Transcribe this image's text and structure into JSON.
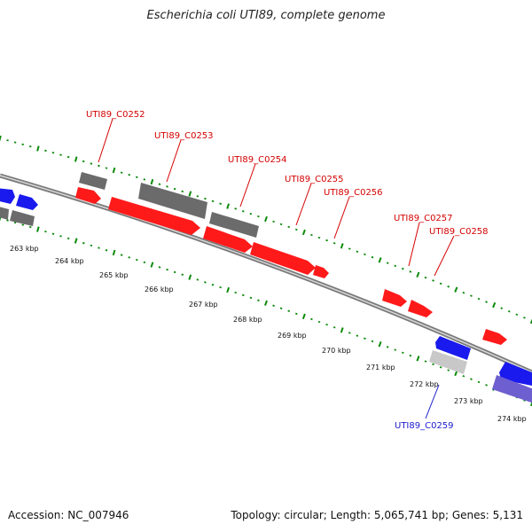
{
  "title": "Escherichia coli UTI89, complete genome",
  "footer": {
    "accession": "Accession: NC_007946",
    "stats": "Topology: circular; Length: 5,065,741 bp; Genes: 5,131"
  },
  "colors": {
    "gene_red": "#ff1a1a",
    "gene_gray": "#666666",
    "gene_blue": "#1a1aee",
    "gene_lightgray": "#c8c8c8",
    "gene_purple": "#6e5fd0",
    "backbone": "#7a7a7a",
    "tick_green": "#0a8a0a",
    "label_red": "#d40000",
    "label_blue": "#1a1acc"
  },
  "kbp_labels": [
    "263 kbp",
    "264 kbp",
    "265 kbp",
    "266 kbp",
    "267 kbp",
    "268 kbp",
    "269 kbp",
    "270 kbp",
    "271 kbp",
    "272 kbp",
    "273 kbp",
    "274 kbp"
  ],
  "gene_labels": [
    {
      "id": "UTI89_C0252",
      "color": "red"
    },
    {
      "id": "UTI89_C0253",
      "color": "red"
    },
    {
      "id": "UTI89_C0254",
      "color": "red"
    },
    {
      "id": "UTI89_C0255",
      "color": "red"
    },
    {
      "id": "UTI89_C0256",
      "color": "red"
    },
    {
      "id": "UTI89_C0257",
      "color": "red"
    },
    {
      "id": "UTI89_C0258",
      "color": "red"
    },
    {
      "id": "UTI89_C0259",
      "color": "blue"
    }
  ]
}
